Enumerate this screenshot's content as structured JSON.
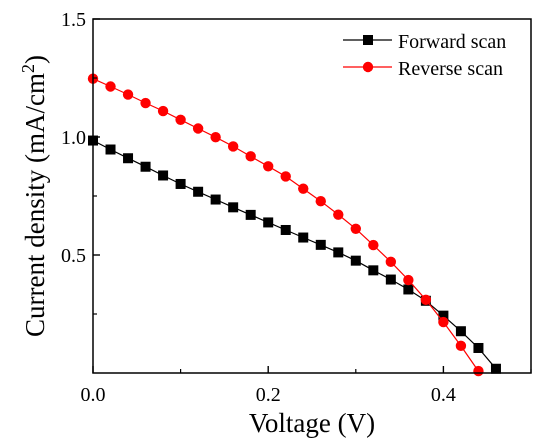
{
  "chart_data": {
    "type": "line",
    "title": "",
    "xlabel": "Voltage (V)",
    "ylabel": {
      "main": "Current density (mA/cm",
      "sup": "2",
      "tail": ")"
    },
    "xlim": [
      0.0,
      0.5
    ],
    "ylim": [
      0.0,
      1.5
    ],
    "x_ticks": [
      {
        "value": 0.0,
        "label": "0.0"
      },
      {
        "value": 0.2,
        "label": "0.2"
      },
      {
        "value": 0.4,
        "label": "0.4"
      }
    ],
    "y_ticks": [
      {
        "value": 0.5,
        "label": "0.5"
      },
      {
        "value": 1.0,
        "label": "1.0"
      },
      {
        "value": 1.5,
        "label": "1.5"
      }
    ],
    "x_minor_ticks": [
      0.1,
      0.3,
      0.5
    ],
    "y_minor_ticks": [
      0.25,
      0.75,
      1.25
    ],
    "grid": false,
    "legend_position": "top-right",
    "series": [
      {
        "name": "Forward scan",
        "color": "#000000",
        "marker": "square",
        "x": [
          0.0,
          0.02,
          0.04,
          0.06,
          0.08,
          0.1,
          0.12,
          0.14,
          0.16,
          0.18,
          0.2,
          0.22,
          0.24,
          0.26,
          0.28,
          0.3,
          0.32,
          0.34,
          0.36,
          0.38,
          0.4,
          0.42,
          0.44,
          0.46
        ],
        "y": [
          0.985,
          0.947,
          0.91,
          0.874,
          0.837,
          0.801,
          0.768,
          0.735,
          0.702,
          0.67,
          0.638,
          0.606,
          0.574,
          0.543,
          0.511,
          0.476,
          0.435,
          0.396,
          0.354,
          0.306,
          0.243,
          0.177,
          0.106,
          0.018
        ]
      },
      {
        "name": "Reverse scan",
        "color": "#ff0000",
        "marker": "circle",
        "x": [
          0.0,
          0.02,
          0.04,
          0.06,
          0.08,
          0.1,
          0.12,
          0.14,
          0.16,
          0.18,
          0.2,
          0.22,
          0.24,
          0.26,
          0.28,
          0.3,
          0.32,
          0.34,
          0.36,
          0.38,
          0.4,
          0.42,
          0.44
        ],
        "y": [
          1.247,
          1.214,
          1.18,
          1.144,
          1.11,
          1.073,
          1.036,
          0.999,
          0.96,
          0.918,
          0.876,
          0.833,
          0.781,
          0.728,
          0.671,
          0.611,
          0.542,
          0.471,
          0.394,
          0.31,
          0.216,
          0.115,
          0.008
        ]
      }
    ]
  }
}
